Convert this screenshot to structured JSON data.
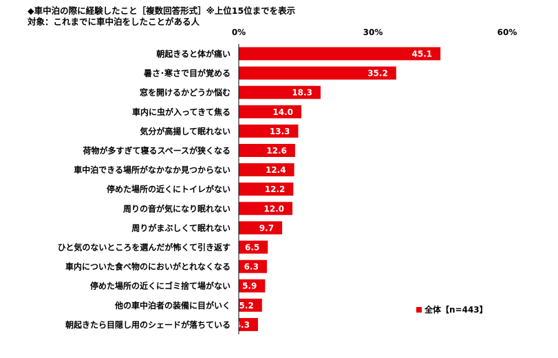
{
  "header": {
    "title": "◆車中泊の際に経験したこと［複数回答形式］※上位15位までを表示",
    "subtitle": "対象：これまでに車中泊をしたことがある人"
  },
  "colors": {
    "bar": "#e8000b",
    "axis": "#000000",
    "value_text": "#ffffff"
  },
  "chart_data": {
    "type": "bar",
    "orientation": "horizontal",
    "title": "◆車中泊の際に経験したこと［複数回答形式］※上位15位までを表示",
    "subtitle": "対象：これまでに車中泊をしたことがある人",
    "categories": [
      "朝起きると体が痛い",
      "暑さ･寒さで目が覚める",
      "窓を開けるかどうか悩む",
      "車内に虫が入ってきて焦る",
      "気分が高揚して眠れない",
      "荷物が多すぎて寝るスペースが狭くなる",
      "車中泊できる場所がなかなか見つからない",
      "停めた場所の近くにトイレがない",
      "周りの音が気になり眠れない",
      "周りがまぶしくて眠れない",
      "ひと気のないところを選んだが怖くて引き返す",
      "車内についた食べ物のにおいがとれなくなる",
      "停めた場所の近くにゴミ捨て場がない",
      "他の車中泊者の装備に目がいく",
      "朝起きたら目隠し用のシェードが落ちている"
    ],
    "series": [
      {
        "name": "全体【n=443】",
        "values": [
          45.1,
          35.2,
          18.3,
          14.0,
          13.3,
          12.6,
          12.4,
          12.2,
          12.0,
          9.7,
          6.5,
          6.3,
          5.9,
          5.2,
          4.3
        ],
        "value_labels": [
          "45.1",
          "35.2",
          "18.3",
          "14.0",
          "13.3",
          "12.6",
          "12.4",
          "12.2",
          "12.0",
          "9.7",
          "6.5",
          "6.3",
          "5.9",
          "5.2",
          "4.3"
        ]
      }
    ],
    "xlim": [
      0,
      60
    ],
    "xticks": [
      0,
      30,
      60
    ],
    "xtick_labels": [
      "0%",
      "30%",
      "60%"
    ],
    "xlabel": "",
    "ylabel": "",
    "grid": false,
    "legend_position": "bottom-right"
  }
}
